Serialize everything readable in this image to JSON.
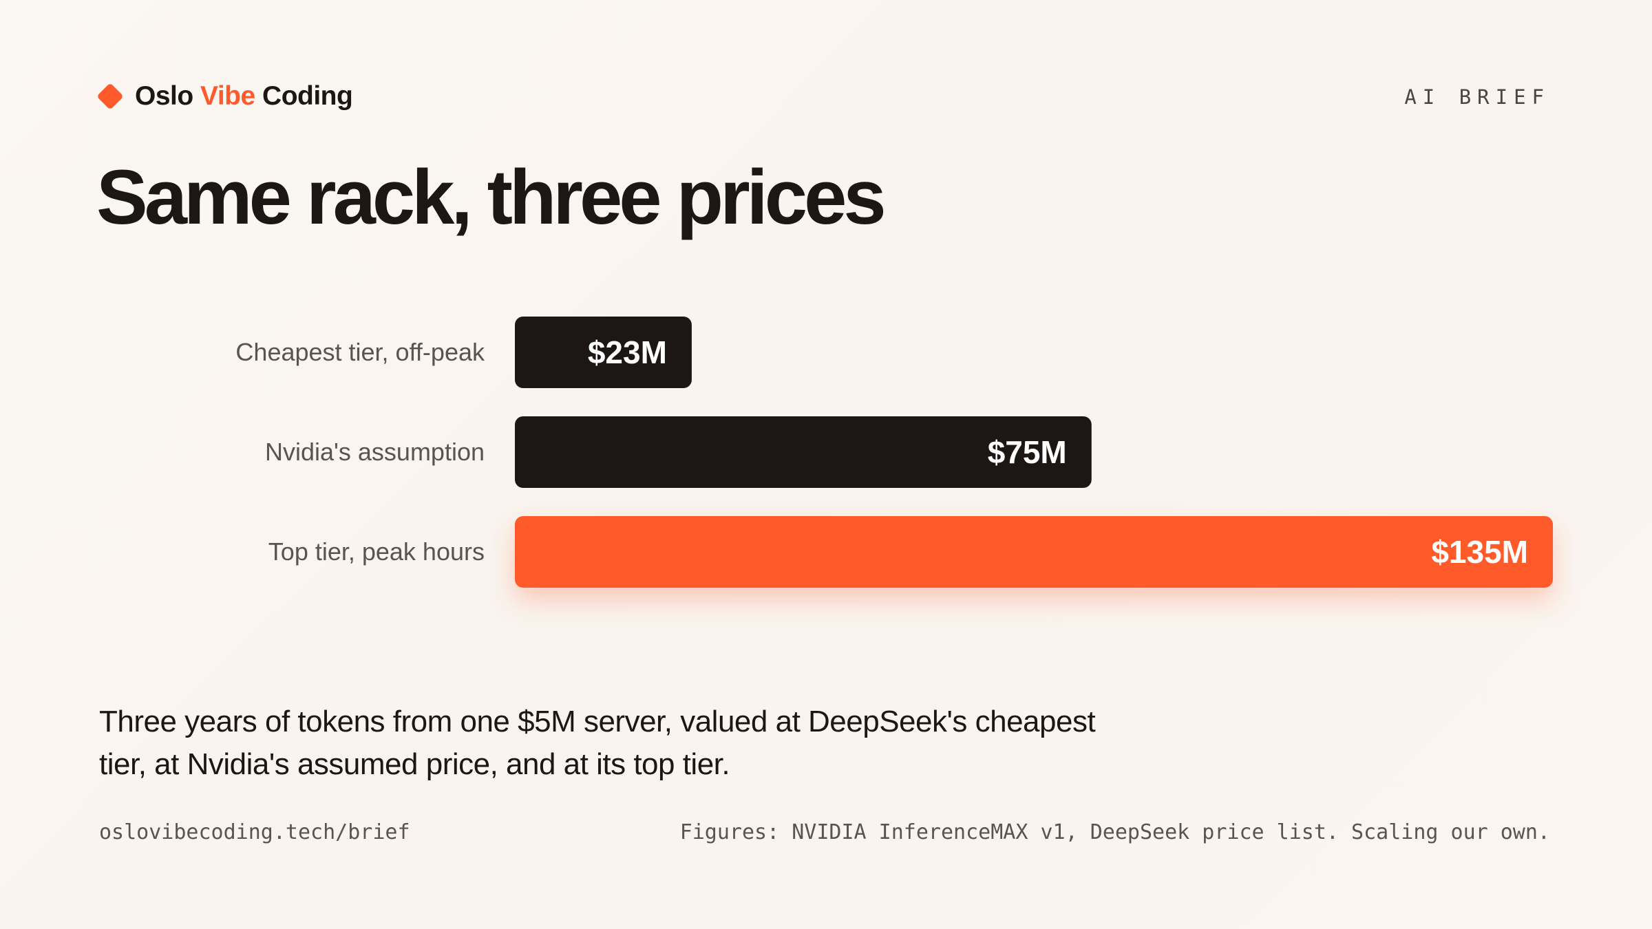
{
  "brand": {
    "name_part1": "Oslo ",
    "name_accent": "Vibe",
    "name_part2": " Coding",
    "logo_icon": "diamond-icon"
  },
  "tag": "AI BRIEF",
  "chart_data": {
    "type": "bar",
    "orientation": "horizontal",
    "title": "Same rack, three prices",
    "categories": [
      "Cheapest tier, off-peak",
      "Nvidia's assumption",
      "Top tier, peak hours"
    ],
    "values": [
      23,
      75,
      135
    ],
    "value_labels": [
      "$23M",
      "$75M",
      "$135M"
    ],
    "unit": "$M",
    "xlim": [
      0,
      135
    ],
    "grid": false,
    "legend": "none",
    "colors": [
      "#1c1714",
      "#1c1714",
      "#ff5a2c"
    ],
    "highlight_index": 2
  },
  "description": "Three years of tokens from one $5M server, valued at DeepSeek's cheapest tier, at Nvidia's assumed price, and at its top tier.",
  "footer": {
    "url": "oslovibecoding.tech/brief",
    "source": "Figures: NVIDIA InferenceMAX v1, DeepSeek price list. Scaling our own."
  },
  "colors": {
    "accent": "#ff5a2c",
    "ink": "#1c1714",
    "muted": "#5a534e",
    "background": "#faf5f0"
  }
}
